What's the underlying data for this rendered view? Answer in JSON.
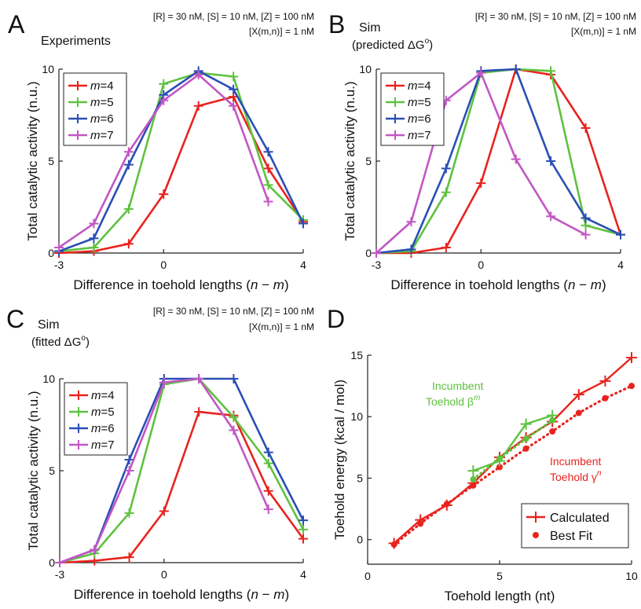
{
  "colors": {
    "red": "#e8231e",
    "green": "#5ec23f",
    "blue": "#2a4fb5",
    "purple": "#c257c4",
    "axis": "#222222"
  },
  "chart_data": [
    {
      "panel": "A",
      "type": "line",
      "title": "Experiments",
      "conditions": [
        "[R] = 30 nM, [S] = 10 nM, [Z] = 100 nM",
        "[X(m,n)] = 1 nM"
      ],
      "xlabel": "Difference in toehold lengths (n − m)",
      "ylabel": "Total catalytic activity (n.u.)",
      "xlim": [
        -3,
        4
      ],
      "ylim": [
        0,
        10
      ],
      "xticks": [
        "-3",
        "0",
        "4"
      ],
      "yticks": [
        "0",
        "5",
        "10"
      ],
      "legend_position": "top-left",
      "series": [
        {
          "name": "m=4",
          "color": "red",
          "x": [
            -3,
            -2,
            -1,
            0,
            1,
            2,
            3,
            4
          ],
          "y": [
            0.0,
            0.1,
            0.5,
            3.2,
            8.0,
            8.5,
            4.6,
            1.7
          ]
        },
        {
          "name": "m=5",
          "color": "green",
          "x": [
            -3,
            -2,
            -1,
            0,
            1,
            2,
            3,
            4
          ],
          "y": [
            0.1,
            0.3,
            2.4,
            9.2,
            9.8,
            9.6,
            3.7,
            1.8
          ]
        },
        {
          "name": "m=6",
          "color": "blue",
          "x": [
            -3,
            -2,
            -1,
            0,
            1,
            2,
            3,
            4
          ],
          "y": [
            0.1,
            0.8,
            4.8,
            8.6,
            9.9,
            8.9,
            5.5,
            1.6
          ]
        },
        {
          "name": "m=7",
          "color": "purple",
          "x": [
            -3,
            -2,
            -1,
            0,
            1,
            2,
            3
          ],
          "y": [
            0.3,
            1.6,
            5.5,
            8.3,
            9.7,
            8.0,
            2.8
          ]
        }
      ]
    },
    {
      "panel": "B",
      "type": "line",
      "title": "Sim",
      "title2": "(predicted ΔG",
      "title_sup": "o",
      "title_end": ")",
      "conditions": [
        "[R] = 30 nM, [S] = 10 nM, [Z] = 100 nM",
        "[X(m,n)] = 1 nM"
      ],
      "xlabel": "Difference in toehold lengths (n − m)",
      "ylabel": "Total catalytic activity (n.u.)",
      "xlim": [
        -3,
        4
      ],
      "ylim": [
        0,
        10
      ],
      "xticks": [
        "-3",
        "0",
        "4"
      ],
      "yticks": [
        "0",
        "5",
        "10"
      ],
      "legend_position": "top-left",
      "series": [
        {
          "name": "m=4",
          "color": "red",
          "x": [
            -3,
            -2,
            -1,
            0,
            1,
            2,
            3,
            4
          ],
          "y": [
            0.0,
            0.0,
            0.3,
            3.8,
            10.0,
            9.7,
            6.8,
            1.0
          ]
        },
        {
          "name": "m=5",
          "color": "green",
          "x": [
            -3,
            -2,
            -1,
            0,
            1,
            2,
            3,
            4
          ],
          "y": [
            0.0,
            0.1,
            3.3,
            9.8,
            10.0,
            9.9,
            1.5,
            1.0
          ]
        },
        {
          "name": "m=6",
          "color": "blue",
          "x": [
            -3,
            -2,
            -1,
            0,
            1,
            2,
            3,
            4
          ],
          "y": [
            0.0,
            0.2,
            4.6,
            9.9,
            10.0,
            5.0,
            1.9,
            1.0
          ]
        },
        {
          "name": "m=7",
          "color": "purple",
          "x": [
            -3,
            -2,
            -1,
            0,
            1,
            2,
            3
          ],
          "y": [
            0.0,
            1.7,
            8.3,
            9.8,
            5.1,
            2.0,
            1.0
          ]
        }
      ]
    },
    {
      "panel": "C",
      "type": "line",
      "title": "Sim",
      "title2": "(fitted ΔG",
      "title_sup": "o",
      "title_end": ")",
      "conditions": [
        "[R] = 30 nM, [S] = 10 nM, [Z] = 100 nM",
        "[X(m,n)] = 1 nM"
      ],
      "xlabel": "Difference in toehold lengths (n − m)",
      "ylabel": "Total catalytic activity (n.u.)",
      "xlim": [
        -3,
        4
      ],
      "ylim": [
        0,
        10
      ],
      "xticks": [
        "-3",
        "0",
        "4"
      ],
      "yticks": [
        "0",
        "5",
        "10"
      ],
      "legend_position": "top-left",
      "series": [
        {
          "name": "m=4",
          "color": "red",
          "x": [
            -3,
            -2,
            -1,
            0,
            1,
            2,
            3,
            4
          ],
          "y": [
            0.0,
            0.1,
            0.3,
            2.8,
            8.2,
            8.0,
            3.9,
            1.3
          ]
        },
        {
          "name": "m=5",
          "color": "green",
          "x": [
            -3,
            -2,
            -1,
            0,
            1,
            2,
            3,
            4
          ],
          "y": [
            0.0,
            0.5,
            2.7,
            9.7,
            10.0,
            7.9,
            5.4,
            1.8
          ]
        },
        {
          "name": "m=6",
          "color": "blue",
          "x": [
            -3,
            -2,
            -1,
            0,
            1,
            2,
            3,
            4
          ],
          "y": [
            0.0,
            0.7,
            5.6,
            10.0,
            10.0,
            10.0,
            6.0,
            2.3
          ]
        },
        {
          "name": "m=7",
          "color": "purple",
          "x": [
            -3,
            -2,
            -1,
            0,
            1,
            2,
            3
          ],
          "y": [
            0.0,
            0.7,
            5.0,
            9.8,
            10.0,
            7.2,
            2.9
          ]
        }
      ]
    },
    {
      "panel": "D",
      "type": "line",
      "xlabel": "Toehold length (nt)",
      "ylabel": "Toehold energy (kcal / mol)",
      "xlim": [
        0,
        10
      ],
      "ylim": [
        -2,
        15
      ],
      "xticks": [
        "0",
        "5",
        "10"
      ],
      "yticks": [
        "0",
        "5",
        "10",
        "15"
      ],
      "legend_position": "bottom-right",
      "legend": [
        "Calculated",
        "Best Fit"
      ],
      "annotations": [
        {
          "text": "Incumbent",
          "text2": "Toehold β",
          "sup": "m",
          "color": "green"
        },
        {
          "text": "Incumbent",
          "text2": "Toehold γ",
          "sup": "n",
          "color": "red"
        }
      ],
      "series": [
        {
          "name": "Calculated γ",
          "style": "solid",
          "color": "red",
          "x": [
            1,
            2,
            3,
            4,
            5,
            6,
            7,
            8,
            9,
            10
          ],
          "y": [
            -0.3,
            1.6,
            2.8,
            4.6,
            6.7,
            8.3,
            9.6,
            11.8,
            12.9,
            14.8
          ]
        },
        {
          "name": "Best Fit γ",
          "style": "dotted",
          "color": "red",
          "x": [
            1,
            2,
            3,
            4,
            5,
            6,
            7,
            8,
            9,
            10
          ],
          "y": [
            -0.4,
            1.3,
            2.9,
            4.4,
            5.9,
            7.4,
            8.8,
            10.3,
            11.5,
            12.5
          ]
        },
        {
          "name": "Calculated β",
          "style": "solid",
          "color": "green",
          "x": [
            4,
            5,
            6,
            7
          ],
          "y": [
            5.6,
            6.4,
            9.4,
            10.1
          ]
        },
        {
          "name": "Best Fit β",
          "style": "dotted",
          "color": "green",
          "x": [
            4,
            5,
            6,
            7
          ],
          "y": [
            4.9,
            6.6,
            8.2,
            9.7
          ]
        }
      ]
    }
  ]
}
